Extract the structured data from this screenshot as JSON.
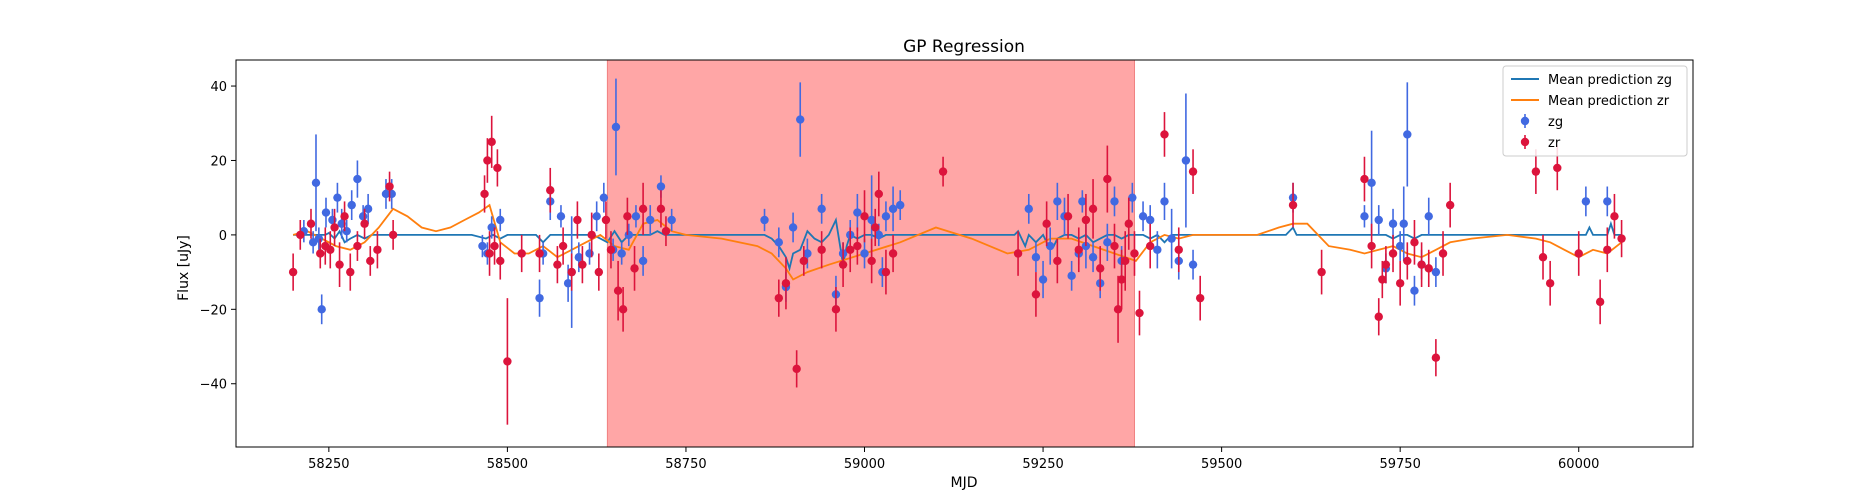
{
  "chart_data": {
    "type": "scatter",
    "title": "GP Regression",
    "xlabel": "MJD",
    "ylabel": "Flux [uJy]",
    "xlim": [
      58120,
      60160
    ],
    "ylim": [
      -57,
      47
    ],
    "xticks": [
      58250,
      58500,
      58750,
      59000,
      59250,
      59500,
      59750,
      60000
    ],
    "yticks": [
      40,
      20,
      0,
      -20,
      -40
    ],
    "grid": false,
    "legend_position": "top-right",
    "shaded_region": {
      "x_start": 58640,
      "x_end": 59378,
      "color": "#ffa6a6"
    },
    "colors": {
      "zg_line": "#1f77b4",
      "zr_line": "#ff7f0e",
      "zg_points": "#4169e1",
      "zr_points": "#dc143c"
    },
    "legend": [
      {
        "label": "Mean prediction zg",
        "kind": "line",
        "color": "#1f77b4"
      },
      {
        "label": "Mean prediction zr",
        "kind": "line",
        "color": "#ff7f0e"
      },
      {
        "label": "zg",
        "kind": "errorbar",
        "color": "#4169e1"
      },
      {
        "label": "zr",
        "kind": "errorbar",
        "color": "#dc143c"
      }
    ],
    "series": [
      {
        "name": "Mean prediction zg",
        "kind": "line",
        "x": [
          58200,
          58245,
          58250,
          58258,
          58265,
          58272,
          58280,
          58290,
          58300,
          58310,
          58320,
          58330,
          58340,
          58350,
          58400,
          58450,
          58470,
          58480,
          58490,
          58500,
          58520,
          58540,
          58550,
          58560,
          58580,
          58600,
          58620,
          58630,
          58640,
          58650,
          58660,
          58670,
          58680,
          58690,
          58700,
          58710,
          58720,
          58740,
          58800,
          58850,
          58860,
          58870,
          58880,
          58890,
          58895,
          58900,
          58910,
          58920,
          58930,
          58940,
          58950,
          58960,
          58965,
          58970,
          58975,
          58980,
          58990,
          59000,
          59010,
          59020,
          59030,
          59040,
          59050,
          59100,
          59150,
          59200,
          59210,
          59215,
          59220,
          59225,
          59230,
          59240,
          59250,
          59260,
          59265,
          59270,
          59280,
          59290,
          59300,
          59310,
          59320,
          59330,
          59340,
          59350,
          59360,
          59370,
          59380,
          59390,
          59400,
          59410,
          59420,
          59430,
          59440,
          59450,
          59460,
          59470,
          59500,
          59550,
          59590,
          59600,
          59605,
          59610,
          59620,
          59650,
          59700,
          59710,
          59720,
          59730,
          59740,
          59750,
          59760,
          59770,
          59780,
          59790,
          59800,
          59850,
          59900,
          59950,
          60000,
          60010,
          60015,
          60020,
          60030,
          60040,
          60045,
          60050,
          60060
        ],
        "y": [
          0,
          0,
          0.5,
          -1,
          1,
          -2,
          -1,
          0,
          -1,
          0,
          0,
          0,
          0,
          0,
          0,
          0,
          -1,
          0,
          -1,
          0,
          0,
          0,
          -2,
          0,
          0,
          0,
          0,
          -1,
          -2,
          1,
          -2,
          0,
          0,
          0,
          0,
          1,
          0,
          0,
          0,
          0,
          0,
          -1,
          -3,
          -6,
          -9,
          -5,
          -4,
          1,
          -1,
          -2,
          0,
          4,
          -2,
          -8,
          -3,
          0,
          -1,
          0,
          0,
          -1,
          0,
          0,
          0,
          0,
          0,
          0,
          0,
          1,
          -1,
          -3,
          0,
          -2,
          0,
          -4,
          -3,
          -1,
          0,
          0,
          -1,
          0,
          -2,
          -1,
          0,
          0,
          -1,
          0,
          0,
          0,
          -1,
          0,
          -2,
          0,
          0,
          0,
          0,
          0,
          0,
          0,
          0,
          2,
          0,
          0,
          0,
          0,
          0,
          0,
          0,
          0,
          -1,
          0,
          0,
          -1,
          0,
          0,
          0,
          0,
          0,
          0,
          0,
          0,
          2,
          0,
          0,
          0,
          3,
          0,
          0
        ]
      },
      {
        "name": "Mean prediction zr",
        "kind": "line",
        "x": [
          58200,
          58220,
          58240,
          58260,
          58280,
          58300,
          58320,
          58340,
          58360,
          58380,
          58400,
          58420,
          58440,
          58460,
          58475,
          58490,
          58510,
          58530,
          58550,
          58570,
          58590,
          58610,
          58630,
          58650,
          58670,
          58690,
          58710,
          58730,
          58750,
          58800,
          58850,
          58870,
          58890,
          58900,
          58920,
          58950,
          59000,
          59050,
          59100,
          59150,
          59200,
          59230,
          59260,
          59290,
          59320,
          59350,
          59380,
          59400,
          59420,
          59440,
          59460,
          59500,
          59550,
          59580,
          59600,
          59620,
          59650,
          59680,
          59700,
          59720,
          59740,
          59760,
          59780,
          59800,
          59820,
          59850,
          59900,
          59940,
          59960,
          59980,
          60000,
          60020,
          60040,
          60060
        ],
        "y": [
          0,
          1,
          -1,
          -3,
          -4,
          -2,
          2,
          7,
          5,
          2,
          1,
          2,
          4,
          6,
          8,
          -2,
          -5,
          -5,
          -3,
          -6,
          -4,
          -2,
          0,
          -3,
          -4,
          3,
          4,
          1,
          0,
          -1,
          -3,
          -5,
          -9,
          -12,
          -10,
          -8,
          -5,
          -2,
          2,
          -1,
          -5,
          -4,
          -1,
          -1,
          -3,
          -5,
          -7,
          -2,
          0,
          -1,
          0,
          0,
          0,
          2,
          3,
          3,
          -3,
          -4,
          -5,
          -4,
          -3,
          -5,
          -6,
          -4,
          -2,
          -1,
          0,
          -1,
          -2,
          -4,
          -6,
          -4,
          -5,
          -2
        ]
      },
      {
        "name": "zg",
        "kind": "errorbar",
        "x": [
          58215,
          58228,
          58232,
          58236,
          58240,
          58246,
          58255,
          58262,
          58268,
          58275,
          58282,
          58290,
          58298,
          58305,
          58330,
          58338,
          58465,
          58472,
          58478,
          58490,
          58545,
          58550,
          58560,
          58575,
          58585,
          58590,
          58600,
          58615,
          58625,
          58635,
          58648,
          58652,
          58660,
          58670,
          58680,
          58690,
          58700,
          58715,
          58730,
          58860,
          58880,
          58890,
          58900,
          58910,
          58920,
          58940,
          58960,
          58970,
          58980,
          58990,
          59000,
          59010,
          59020,
          59025,
          59030,
          59040,
          59050,
          59230,
          59240,
          59250,
          59260,
          59270,
          59280,
          59290,
          59300,
          59305,
          59310,
          59320,
          59330,
          59340,
          59350,
          59360,
          59375,
          59390,
          59400,
          59410,
          59420,
          59430,
          59440,
          59450,
          59460,
          59600,
          59700,
          59710,
          59720,
          59730,
          59740,
          59750,
          59755,
          59760,
          59770,
          59780,
          59790,
          59800,
          60010,
          60040
        ],
        "y": [
          1,
          -2,
          14,
          -1,
          -20,
          6,
          4,
          10,
          3,
          1,
          8,
          15,
          5,
          7,
          11,
          11,
          -3,
          -5,
          2,
          4,
          -17,
          -5,
          9,
          5,
          -13,
          -10,
          -6,
          -5,
          5,
          10,
          -4,
          29,
          -5,
          0,
          5,
          -7,
          4,
          13,
          4,
          4,
          -2,
          -14,
          2,
          31,
          -5,
          7,
          -16,
          -5,
          0,
          6,
          -5,
          4,
          0,
          -10,
          5,
          7,
          8,
          7,
          -6,
          -12,
          -3,
          9,
          5,
          -11,
          -5,
          9,
          -3,
          -6,
          -13,
          -2,
          9,
          -7,
          10,
          5,
          4,
          -4,
          9,
          -1,
          -7,
          20,
          -8,
          10,
          5,
          14,
          4,
          -9,
          3,
          -3,
          3,
          27,
          -15,
          -8,
          5,
          -10,
          9,
          9
        ],
        "yerr": [
          3,
          3,
          13,
          3,
          4,
          4,
          3,
          4,
          4,
          3,
          4,
          5,
          3,
          4,
          4,
          4,
          3,
          3,
          3,
          3,
          5,
          3,
          5,
          3,
          5,
          15,
          4,
          3,
          4,
          4,
          3,
          13,
          3,
          3,
          3,
          4,
          4,
          3,
          3,
          3,
          4,
          4,
          4,
          10,
          4,
          4,
          5,
          3,
          4,
          5,
          4,
          12,
          3,
          4,
          4,
          6,
          4,
          4,
          4,
          5,
          5,
          5,
          5,
          4,
          3,
          3,
          6,
          4,
          4,
          5,
          4,
          4,
          4,
          4,
          4,
          5,
          5,
          8,
          5,
          18,
          4,
          4,
          3,
          14,
          4,
          4,
          4,
          4,
          10,
          14,
          4,
          4,
          5,
          4,
          4,
          4
        ]
      },
      {
        "name": "zr",
        "kind": "errorbar",
        "x": [
          58200,
          58210,
          58225,
          58238,
          58245,
          58252,
          58258,
          58265,
          58272,
          58280,
          58290,
          58300,
          58308,
          58318,
          58335,
          58340,
          58468,
          58472,
          58475,
          58478,
          58482,
          58486,
          58490,
          58500,
          58520,
          58545,
          58560,
          58570,
          58578,
          58590,
          58598,
          58605,
          58618,
          58628,
          58638,
          58645,
          58655,
          58662,
          58668,
          58678,
          58690,
          58715,
          58722,
          58880,
          58890,
          58905,
          58915,
          58940,
          58960,
          58970,
          58980,
          58990,
          59000,
          59010,
          59015,
          59020,
          59030,
          59040,
          59110,
          59215,
          59240,
          59255,
          59270,
          59285,
          59300,
          59310,
          59320,
          59330,
          59340,
          59350,
          59355,
          59360,
          59365,
          59370,
          59378,
          59385,
          59400,
          59420,
          59440,
          59460,
          59470,
          59600,
          59640,
          59700,
          59710,
          59720,
          59725,
          59730,
          59740,
          59750,
          59760,
          59770,
          59780,
          59790,
          59800,
          59810,
          59820,
          59940,
          59950,
          59960,
          59970,
          60000,
          60030,
          60040,
          60050,
          60060
        ],
        "y": [
          -10,
          0,
          3,
          -5,
          -3,
          -4,
          2,
          -8,
          5,
          -10,
          -3,
          3,
          -7,
          -4,
          13,
          0,
          11,
          20,
          -5,
          25,
          -3,
          18,
          -7,
          -34,
          -5,
          -5,
          12,
          -8,
          -3,
          -10,
          4,
          -8,
          0,
          -10,
          4,
          -4,
          -15,
          -20,
          5,
          -9,
          7,
          7,
          1,
          -17,
          -13,
          -36,
          -7,
          -4,
          -20,
          -8,
          -4,
          -3,
          5,
          -7,
          2,
          11,
          -10,
          -5,
          17,
          -5,
          -16,
          3,
          -7,
          5,
          -4,
          4,
          7,
          -9,
          15,
          -3,
          -20,
          -12,
          -7,
          3,
          -5,
          -21,
          -3,
          27,
          -4,
          17,
          -17,
          8,
          -10,
          15,
          -3,
          -22,
          -12,
          -8,
          -5,
          -13,
          -7,
          -2,
          -8,
          -9,
          -33,
          -5,
          8,
          17,
          -6,
          -13,
          18,
          -5,
          -18,
          -4,
          5,
          -1
        ],
        "yerr": [
          5,
          4,
          4,
          4,
          5,
          5,
          5,
          6,
          4,
          5,
          4,
          4,
          4,
          5,
          4,
          4,
          5,
          6,
          6,
          7,
          5,
          5,
          5,
          17,
          5,
          5,
          6,
          5,
          5,
          5,
          5,
          5,
          6,
          5,
          5,
          5,
          8,
          6,
          5,
          6,
          7,
          5,
          4,
          5,
          7,
          5,
          4,
          5,
          6,
          6,
          6,
          5,
          7,
          6,
          5,
          6,
          6,
          5,
          4,
          6,
          6,
          6,
          6,
          6,
          6,
          7,
          8,
          6,
          9,
          6,
          9,
          8,
          8,
          7,
          6,
          6,
          6,
          6,
          6,
          6,
          6,
          6,
          6,
          6,
          6,
          5,
          5,
          5,
          5,
          6,
          5,
          6,
          6,
          5,
          5,
          6,
          6,
          6,
          6,
          6,
          6,
          6,
          6,
          6,
          6,
          5
        ]
      }
    ]
  }
}
